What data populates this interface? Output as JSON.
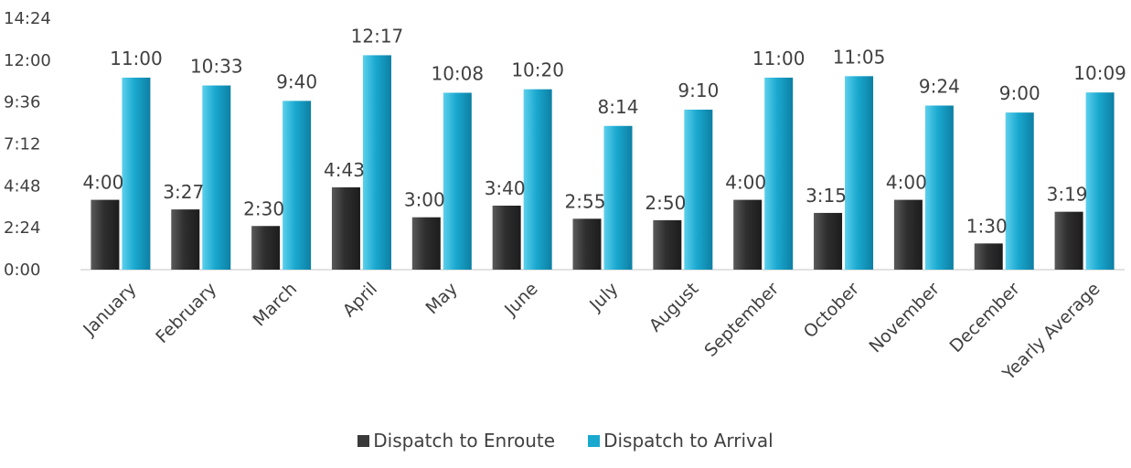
{
  "chart_data": {
    "type": "bar",
    "y_ticks": [
      "0:00",
      "2:24",
      "4:48",
      "7:12",
      "9:36",
      "12:00",
      "14:24"
    ],
    "ylim_minutes": [
      0,
      864
    ],
    "categories": [
      "January",
      "February",
      "March",
      "April",
      "May",
      "June",
      "July",
      "August",
      "September",
      "October",
      "November",
      "December",
      "Yearly Average"
    ],
    "series": [
      {
        "name": "Dispatch to Enroute",
        "color": "#3a3a3a",
        "labels": [
          "4:00",
          "3:27",
          "2:30",
          "4:43",
          "3:00",
          "3:40",
          "2:55",
          "2:50",
          "4:00",
          "3:15",
          "4:00",
          "1:30",
          "3:19"
        ],
        "values_minutes": [
          240,
          207,
          150,
          283,
          180,
          220,
          175,
          170,
          240,
          195,
          240,
          90,
          199
        ]
      },
      {
        "name": "Dispatch to Arrival",
        "color": "#1aa8cf",
        "labels": [
          "11:00",
          "10:33",
          "9:40",
          "12:17",
          "10:08",
          "10:20",
          "8:14",
          "9:10",
          "11:00",
          "11:05",
          "9:24",
          "9:00",
          "10:09"
        ],
        "values_minutes": [
          660,
          633,
          580,
          737,
          608,
          620,
          494,
          550,
          660,
          665,
          564,
          540,
          609
        ]
      }
    ],
    "grid": false,
    "legend_position": "bottom"
  }
}
